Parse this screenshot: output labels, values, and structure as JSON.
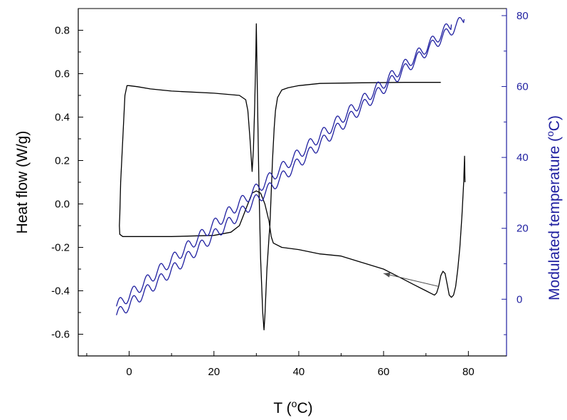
{
  "chart_data": {
    "type": "line",
    "x_axis": {
      "label": "T",
      "unit": "°C",
      "range": [
        -12,
        89
      ],
      "ticks": [
        0,
        20,
        40,
        60,
        80
      ],
      "tick_labels": [
        "0",
        "20",
        "40",
        "60",
        "80"
      ]
    },
    "y_axis_left": {
      "label": "Heat flow (W/g)",
      "range": [
        -0.7,
        0.9
      ],
      "ticks": [
        0.8,
        0.6,
        0.4,
        0.2,
        0.0,
        -0.2,
        -0.4,
        -0.6
      ],
      "tick_labels": [
        "0.8",
        "0.6",
        "0.4",
        "0.2",
        "0.0",
        "-0.2",
        "-0.4",
        "-0.6"
      ],
      "color": "#000000"
    },
    "y_axis_right": {
      "label": "Modulated temperature",
      "unit": "°C",
      "range": [
        -16,
        82
      ],
      "ticks": [
        80,
        60,
        40,
        20,
        0
      ],
      "tick_labels": [
        "80",
        "60",
        "40",
        "20",
        "0"
      ],
      "color": "#1f1fa0"
    },
    "grid": false,
    "legend": "none",
    "series": [
      {
        "axis": "left",
        "color": "#000000",
        "points": [
          [
            73.5,
            0.56
          ],
          [
            65,
            0.56
          ],
          [
            55,
            0.558
          ],
          [
            45,
            0.555
          ],
          [
            40,
            0.545
          ],
          [
            37.5,
            0.535
          ],
          [
            36,
            0.525
          ],
          [
            35,
            0.49
          ],
          [
            34.5,
            0.43
          ],
          [
            34.2,
            0.35
          ],
          [
            33.8,
            0.2
          ],
          [
            33.5,
            0.05
          ],
          [
            33.2,
            -0.1
          ],
          [
            33,
            -0.15
          ],
          [
            32.5,
            -0.3
          ],
          [
            32,
            -0.52
          ],
          [
            31.8,
            -0.58
          ],
          [
            31.5,
            -0.5
          ],
          [
            31,
            -0.25
          ],
          [
            30.6,
            0.1
          ],
          [
            30.3,
            0.45
          ],
          [
            30.1,
            0.7
          ],
          [
            30,
            0.83
          ],
          [
            29.9,
            0.7
          ],
          [
            29.6,
            0.45
          ],
          [
            29.3,
            0.25
          ],
          [
            29,
            0.15
          ],
          [
            28.5,
            0.3
          ],
          [
            28,
            0.43
          ],
          [
            27.5,
            0.48
          ],
          [
            26,
            0.5
          ],
          [
            20,
            0.51
          ],
          [
            10,
            0.52
          ],
          [
            5,
            0.53
          ],
          [
            2,
            0.54
          ],
          [
            0,
            0.545
          ],
          [
            -0.5,
            0.545
          ],
          [
            -1,
            0.5
          ],
          [
            -1.5,
            0.3
          ],
          [
            -2,
            0.1
          ],
          [
            -2.2,
            -0.05
          ],
          [
            -2.3,
            -0.1
          ],
          [
            -2.2,
            -0.14
          ],
          [
            -1.5,
            -0.15
          ],
          [
            0,
            -0.15
          ],
          [
            10,
            -0.15
          ],
          [
            20,
            -0.145
          ],
          [
            24,
            -0.13
          ],
          [
            26,
            -0.1
          ],
          [
            27,
            -0.05
          ],
          [
            28,
            0.0
          ],
          [
            29,
            0.05
          ],
          [
            30,
            0.06
          ],
          [
            31,
            0.05
          ],
          [
            32,
            0.0
          ],
          [
            33,
            -0.08
          ],
          [
            33.5,
            -0.15
          ],
          [
            34,
            -0.18
          ],
          [
            36,
            -0.2
          ],
          [
            40,
            -0.21
          ],
          [
            45,
            -0.23
          ],
          [
            50,
            -0.24
          ],
          [
            55,
            -0.27
          ],
          [
            60,
            -0.3
          ],
          [
            64,
            -0.34
          ],
          [
            67,
            -0.37
          ],
          [
            69,
            -0.39
          ],
          [
            70,
            -0.4
          ],
          [
            71,
            -0.41
          ],
          [
            72,
            -0.42
          ],
          [
            72.5,
            -0.41
          ],
          [
            73,
            -0.38
          ],
          [
            73.5,
            -0.33
          ],
          [
            74,
            -0.31
          ],
          [
            74.5,
            -0.32
          ],
          [
            75,
            -0.37
          ],
          [
            75.5,
            -0.42
          ],
          [
            76,
            -0.43
          ],
          [
            76.5,
            -0.42
          ],
          [
            77,
            -0.38
          ],
          [
            77.5,
            -0.3
          ],
          [
            78,
            -0.2
          ],
          [
            78.5,
            -0.05
          ],
          [
            78.9,
            0.1
          ],
          [
            79.1,
            0.22
          ],
          [
            79.2,
            0.1
          ]
        ]
      },
      {
        "axis": "right",
        "color": "#1f1fa0",
        "modulated": true,
        "oscillation_amplitude": 1.6,
        "oscillation_period_in_x": 3.2,
        "points": [
          [
            -3,
            -2
          ],
          [
            10,
            11
          ],
          [
            20,
            21
          ],
          [
            30,
            31
          ],
          [
            40,
            41
          ],
          [
            50,
            51
          ],
          [
            60,
            61
          ],
          [
            70,
            71
          ],
          [
            76,
            77.5
          ]
        ]
      },
      {
        "axis": "right",
        "color": "#1f1fa0",
        "modulated": true,
        "oscillation_amplitude": 1.6,
        "oscillation_period_in_x": 3.2,
        "points": [
          [
            -3,
            -4.5
          ],
          [
            10,
            8
          ],
          [
            20,
            18
          ],
          [
            30,
            28
          ],
          [
            40,
            38.5
          ],
          [
            50,
            49
          ],
          [
            60,
            59.5
          ],
          [
            70,
            70
          ],
          [
            79,
            79
          ]
        ]
      }
    ],
    "annotations": [
      {
        "type": "arrow",
        "from": [
          73,
          -0.38
        ],
        "to": [
          60,
          -0.32
        ],
        "color": "#505050"
      }
    ]
  }
}
